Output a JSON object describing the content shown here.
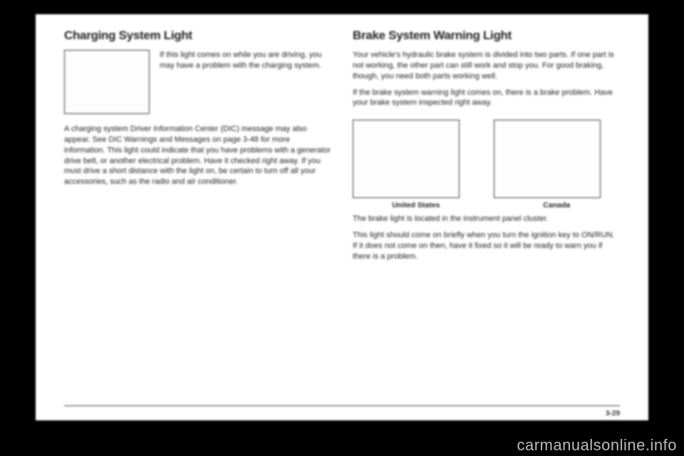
{
  "left": {
    "heading": "Charging System Light",
    "sideText": "If this light comes on while you are driving, you may have a problem with the charging system.",
    "body": "A charging system Driver Information Center (DIC) message may also appear. See DIC Warnings and Messages on page 3-48 for more information. This light could indicate that you have problems with a generator drive belt, or another electrical problem. Have it checked right away. If you must drive a short distance with the light on, be certain to turn off all your accessories, such as the radio and air conditioner."
  },
  "right": {
    "heading": "Brake System Warning Light",
    "p1": "Your vehicle's hydraulic brake system is divided into two parts. If one part is not working, the other part can still work and stop you. For good braking, though, you need both parts working well.",
    "p2": "If the brake system warning light comes on, there is a brake problem. Have your brake system inspected right away.",
    "cap1": "United States",
    "cap2": "Canada",
    "p3": "The brake light is located in the instrument panel cluster.",
    "p4": "This light should come on briefly when you turn the ignition key to ON/RUN. If it does not come on then, have it fixed so it will be ready to warn you if there is a problem."
  },
  "pageNumber": "3-29",
  "watermark": "carmanualsonline.info",
  "colors": {
    "pageBg": "#ffffff",
    "outerBg": "#000000",
    "text": "#222222",
    "border": "#333333",
    "watermark": "#bbbbbb"
  }
}
